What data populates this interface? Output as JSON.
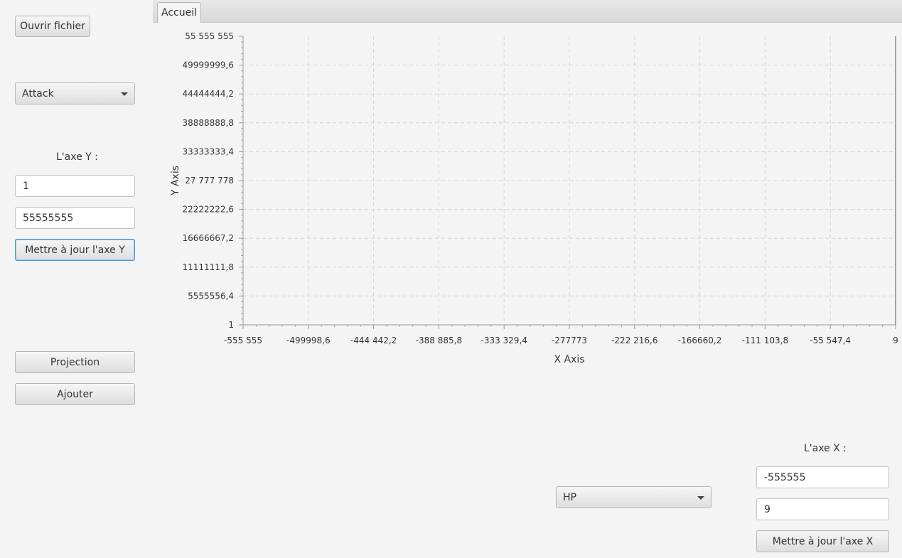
{
  "left_panel": {
    "open_file_label": "Ouvrir fichier",
    "y_attribute_combo": "Attack",
    "y_axis_label": "L'axe Y :",
    "y_min_value": "1",
    "y_max_value": "55555555",
    "update_y_label": "Mettre à jour l'axe Y",
    "projection_label": "Projection",
    "add_label": "Ajouter"
  },
  "tabs": [
    {
      "label": "Accueil"
    }
  ],
  "bottom_panel": {
    "x_attribute_combo": "HP",
    "x_axis_label": "L'axe X :",
    "x_min_value": "-555555",
    "x_max_value": "9",
    "update_x_label": "Mettre à jour l'axe X"
  },
  "chart_data": {
    "type": "scatter",
    "xlabel": "X Axis",
    "ylabel": "Y Axis",
    "xlim": [
      -555555,
      9
    ],
    "ylim": [
      1,
      55555555
    ],
    "x_ticks": [
      "-555 555",
      "-499998,6",
      "-444 442,2",
      "-388 885,8",
      "-333 329,4",
      "-277773",
      "-222 216,6",
      "-166660,2",
      "-111 103,8",
      "-55 547,4",
      "9"
    ],
    "y_ticks": [
      "1",
      "5555556,4",
      "11111111,8",
      "16666667,2",
      "22222222,6",
      "27 777 778",
      "33333333,4",
      "38888888,8",
      "44444444,2",
      "49999999,6",
      "55 555 555"
    ],
    "grid": true,
    "series": []
  }
}
